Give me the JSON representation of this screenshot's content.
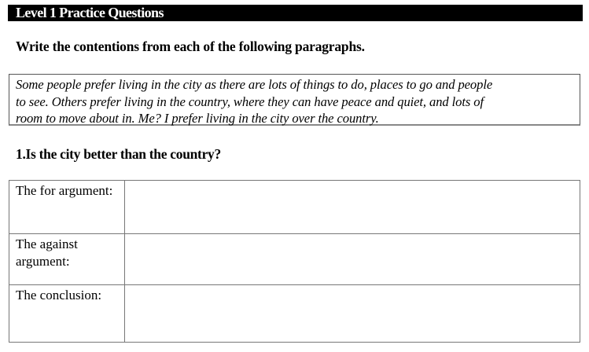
{
  "title": "Level 1 Practice Questions",
  "instruction": "Write the contentions from each of the following paragraphs.",
  "paragraph": {
    "lines": [
      "Some people prefer living in the city as there are lots of things to do, places to go and people",
      "to see. Others prefer living in the country, where they can have peace and quiet, and lots of",
      "room to move about in. Me? I prefer living in the city over the country."
    ]
  },
  "question": "1.Is the city better than the country?",
  "table": {
    "rows": [
      {
        "label": "The for argument:",
        "answer": ""
      },
      {
        "label": "The against argument:",
        "answer": ""
      },
      {
        "label": "The conclusion:",
        "answer": ""
      }
    ]
  }
}
